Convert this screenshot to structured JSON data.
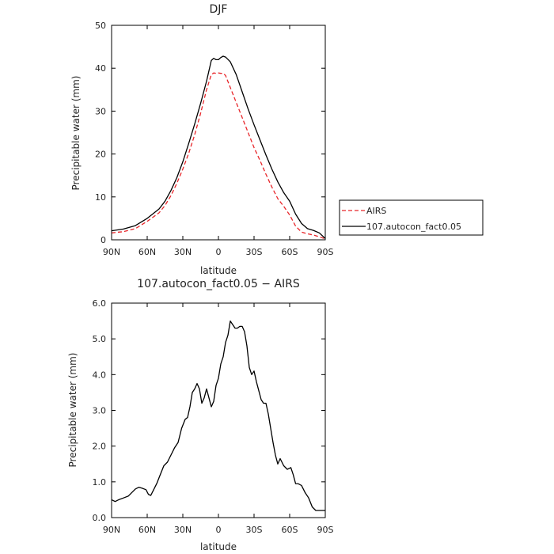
{
  "chart_data": [
    {
      "type": "line",
      "title": "DJF",
      "xlabel": "latitude",
      "ylabel": "Precipitable water (mm)",
      "xlim": [
        90,
        -90
      ],
      "ylim": [
        0,
        50
      ],
      "xticks": [
        90,
        60,
        30,
        0,
        -30,
        -60,
        -90
      ],
      "xtick_labels": [
        "90N",
        "60N",
        "30N",
        "0",
        "30S",
        "60S",
        "90S"
      ],
      "yticks": [
        0,
        10,
        20,
        30,
        40,
        50
      ],
      "ytick_labels": [
        "0",
        "10",
        "20",
        "30",
        "40",
        "50"
      ],
      "legend": "right",
      "grid": false,
      "series": [
        {
          "name": "AIRS",
          "color": "#e8262a",
          "dash": "dashed",
          "x": [
            90,
            80,
            70,
            60,
            50,
            45,
            40,
            35,
            30,
            25,
            20,
            15,
            10,
            6,
            4,
            2,
            0,
            -2,
            -4,
            -6,
            -10,
            -15,
            -20,
            -25,
            -30,
            -35,
            -40,
            -45,
            -50,
            -55,
            -60,
            -65,
            -70,
            -75,
            -80,
            -85,
            -90
          ],
          "y": [
            1.6,
            1.9,
            2.6,
            4.3,
            6.3,
            8.0,
            10.3,
            13.2,
            16.5,
            20.2,
            24.5,
            29.5,
            35.0,
            38.5,
            38.9,
            38.8,
            38.9,
            38.8,
            38.8,
            38.3,
            35.5,
            32.0,
            28.5,
            25.0,
            21.5,
            18.5,
            15.3,
            12.3,
            9.6,
            7.8,
            5.8,
            3.2,
            1.8,
            1.4,
            1.1,
            0.7,
            0.2
          ]
        },
        {
          "name": "107.autocon_fact0.05",
          "color": "#000000",
          "dash": "solid",
          "x": [
            90,
            80,
            70,
            60,
            50,
            45,
            40,
            35,
            30,
            25,
            20,
            15,
            10,
            6,
            4,
            2,
            0,
            -2,
            -4,
            -6,
            -10,
            -15,
            -20,
            -25,
            -30,
            -35,
            -40,
            -45,
            -50,
            -55,
            -60,
            -65,
            -70,
            -75,
            -80,
            -85,
            -90
          ],
          "y": [
            2.1,
            2.5,
            3.3,
            5.0,
            7.2,
            9.0,
            11.5,
            14.5,
            18.2,
            22.5,
            27.0,
            31.8,
            37.0,
            41.8,
            42.3,
            42.0,
            42.0,
            42.5,
            42.8,
            42.6,
            41.5,
            38.5,
            34.5,
            30.5,
            26.8,
            23.3,
            19.8,
            16.5,
            13.5,
            11.0,
            9.0,
            6.0,
            3.8,
            2.6,
            2.2,
            1.6,
            0.3
          ]
        }
      ]
    },
    {
      "type": "line",
      "title": "107.autocon_fact0.05 − AIRS",
      "xlabel": "latitude",
      "ylabel": "Precipitable water (mm)",
      "xlim": [
        90,
        -90
      ],
      "ylim": [
        0,
        6
      ],
      "xticks": [
        90,
        60,
        30,
        0,
        -30,
        -60,
        -90
      ],
      "xtick_labels": [
        "90N",
        "60N",
        "30N",
        "0",
        "30S",
        "60S",
        "90S"
      ],
      "yticks": [
        0,
        1,
        2,
        3,
        4,
        5,
        6
      ],
      "ytick_labels": [
        "0.0",
        "1.0",
        "2.0",
        "3.0",
        "4.0",
        "5.0",
        "6.0"
      ],
      "grid": false,
      "series": [
        {
          "color": "#000000",
          "dash": "solid",
          "x": [
            90,
            87,
            84,
            80,
            76,
            73,
            70,
            67,
            64,
            61,
            59,
            57,
            55,
            52,
            49,
            46,
            43,
            40,
            37,
            34,
            31,
            28,
            26,
            24,
            22,
            20,
            18,
            16,
            14,
            12,
            10,
            8,
            6,
            4,
            2,
            0,
            -2,
            -4,
            -6,
            -8,
            -10,
            -12,
            -14,
            -16,
            -18,
            -20,
            -22,
            -24,
            -26,
            -28,
            -30,
            -32,
            -34,
            -36,
            -38,
            -40,
            -42,
            -44,
            -46,
            -48,
            -50,
            -52,
            -55,
            -58,
            -61,
            -63,
            -65,
            -67,
            -70,
            -73,
            -76,
            -79,
            -82,
            -85,
            -88,
            -90
          ],
          "y": [
            0.5,
            0.45,
            0.5,
            0.55,
            0.6,
            0.7,
            0.8,
            0.85,
            0.82,
            0.78,
            0.65,
            0.62,
            0.75,
            0.95,
            1.2,
            1.45,
            1.55,
            1.75,
            1.95,
            2.1,
            2.5,
            2.75,
            2.8,
            3.1,
            3.5,
            3.6,
            3.75,
            3.6,
            3.2,
            3.35,
            3.6,
            3.35,
            3.1,
            3.25,
            3.7,
            3.9,
            4.3,
            4.5,
            4.9,
            5.1,
            5.5,
            5.4,
            5.3,
            5.3,
            5.35,
            5.35,
            5.2,
            4.8,
            4.2,
            4.0,
            4.1,
            3.8,
            3.55,
            3.3,
            3.2,
            3.2,
            2.9,
            2.5,
            2.1,
            1.75,
            1.5,
            1.65,
            1.45,
            1.35,
            1.4,
            1.2,
            0.95,
            0.95,
            0.9,
            0.7,
            0.55,
            0.3,
            0.2,
            0.2,
            0.2,
            0.2
          ]
        }
      ]
    }
  ]
}
